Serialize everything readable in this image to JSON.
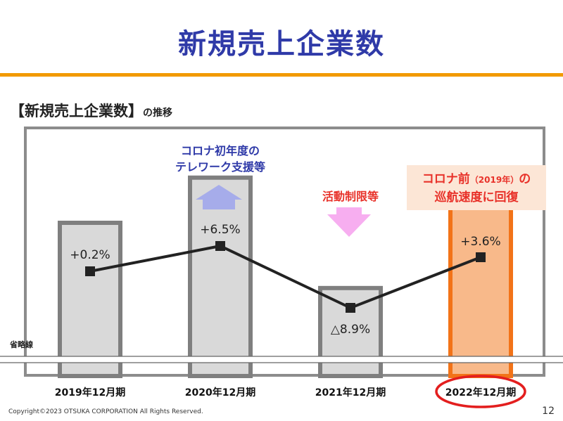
{
  "slide": {
    "title": "新規売上企業数",
    "subtitle_main": "【新規売上企業数】",
    "subtitle_suffix": "の推移",
    "copyright": "Copyright©2023 OTSUKA CORPORATION All Rights Reserved.",
    "page_number": "12"
  },
  "colors": {
    "title_blue": "#2f3aa8",
    "rule_orange": "#f29a00",
    "bar_gray_fill": "#d9d9d9",
    "bar_gray_stroke": "#7f7f7f",
    "highlight_fill": "#f8b98a",
    "highlight_stroke": "#f27318",
    "annotation_red": "#e8322a",
    "arrow_up": "#a6acea",
    "arrow_down": "#f7aef0",
    "line": "#222222"
  },
  "chart_data": {
    "type": "bar",
    "categories": [
      "2019年12月期",
      "2020年12月期",
      "2021年12月期",
      "2022年12月期"
    ],
    "values": [
      100.2,
      106.5,
      91.1,
      103.6
    ],
    "growth": [
      0.2,
      6.5,
      -8.9,
      3.6
    ],
    "data_labels": [
      "+0.2%",
      "+6.5%",
      "△8.9%",
      "+3.6%"
    ],
    "highlight_index": 3,
    "axis_break_label": "省略線",
    "grid": false,
    "legend": "none",
    "annotations": {
      "up_arrow_text": [
        "コロナ初年度の",
        "テレワーク支援等"
      ],
      "down_arrow_text": "活動制限等",
      "recovery_text_line1": [
        "コロナ前",
        "（2019年）",
        "の"
      ],
      "recovery_text_line2": "巡航速度に回復"
    }
  }
}
